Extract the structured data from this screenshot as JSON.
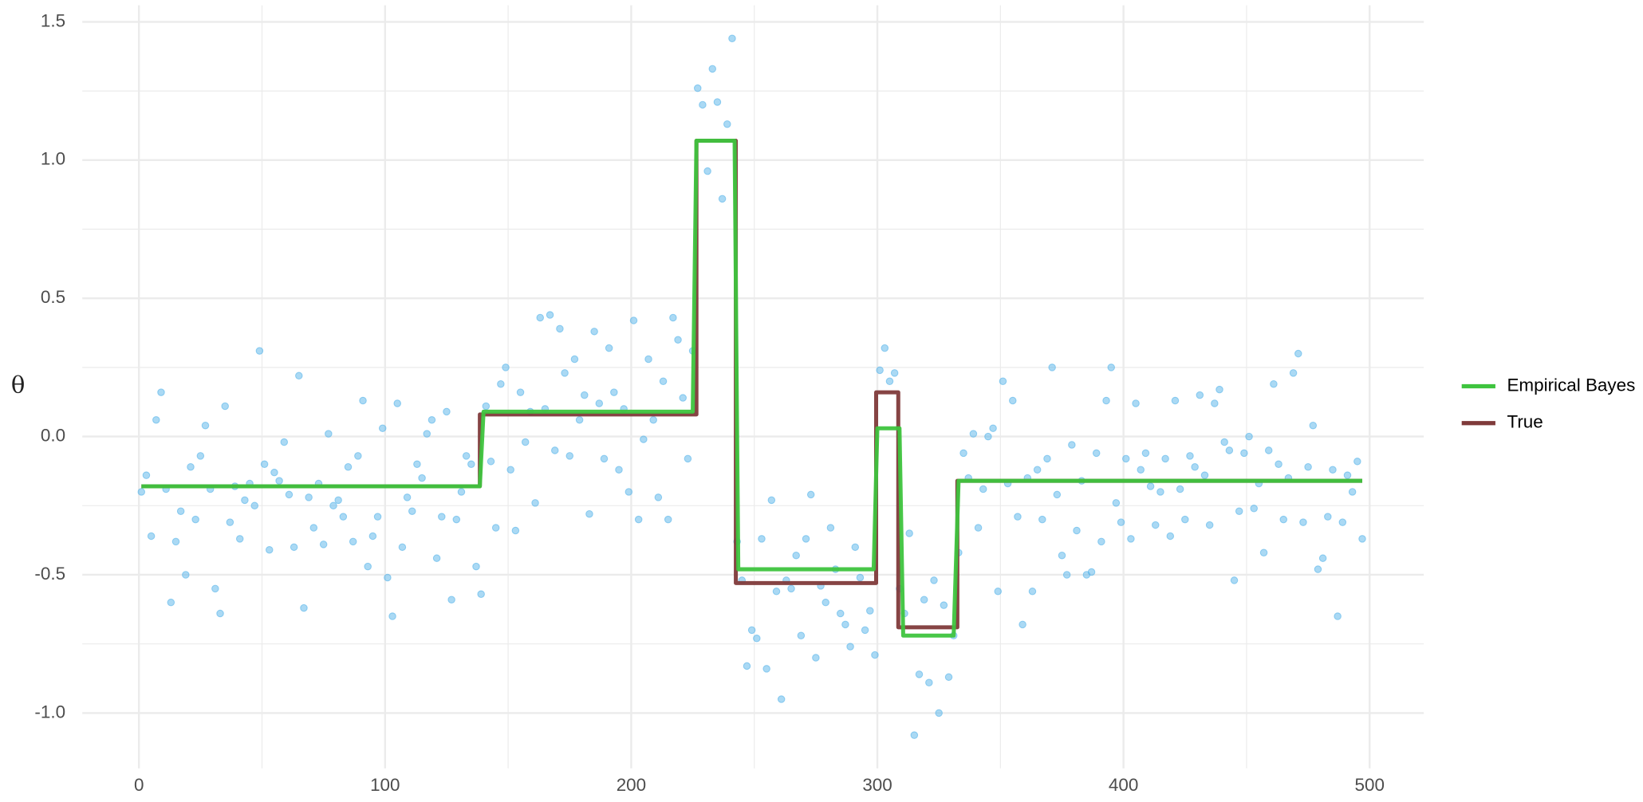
{
  "chart_data": {
    "type": "line",
    "ylabel": "θ",
    "xlim": [
      -23,
      522
    ],
    "ylim": [
      -1.2,
      1.56
    ],
    "xticks": [
      0,
      100,
      200,
      300,
      400,
      500
    ],
    "x_minor_ticks": [
      50,
      150,
      250,
      350,
      450
    ],
    "yticks": [
      {
        "value": -1,
        "label": "-1.0"
      },
      -0.5,
      {
        "value": 0,
        "label": "0.0"
      },
      0.5,
      {
        "value": 1,
        "label": "1.0"
      },
      1.5
    ],
    "y_minor_ticks": [
      -0.75,
      -0.25,
      0.25,
      0.75,
      1.25
    ],
    "grid": true,
    "legend": "right",
    "points": {
      "color": "#56B4E9",
      "x": [
        1,
        3,
        5,
        7,
        9,
        11,
        13,
        15,
        17,
        19,
        21,
        23,
        25,
        27,
        29,
        31,
        33,
        35,
        37,
        39,
        41,
        43,
        45,
        47,
        49,
        51,
        53,
        55,
        57,
        59,
        61,
        63,
        65,
        67,
        69,
        71,
        73,
        75,
        77,
        79,
        81,
        83,
        85,
        87,
        89,
        91,
        93,
        95,
        97,
        99,
        101,
        103,
        105,
        107,
        109,
        111,
        113,
        115,
        117,
        119,
        121,
        123,
        125,
        127,
        129,
        131,
        133,
        135,
        137,
        139,
        141,
        143,
        145,
        147,
        149,
        151,
        153,
        155,
        157,
        159,
        161,
        163,
        165,
        167,
        169,
        171,
        173,
        175,
        177,
        179,
        181,
        183,
        185,
        187,
        189,
        191,
        193,
        195,
        197,
        199,
        201,
        203,
        205,
        207,
        209,
        211,
        213,
        215,
        217,
        219,
        221,
        223,
        225,
        227,
        229,
        231,
        233,
        235,
        237,
        239,
        241,
        243,
        245,
        247,
        249,
        251,
        253,
        255,
        257,
        259,
        261,
        263,
        265,
        267,
        269,
        271,
        273,
        275,
        277,
        279,
        281,
        283,
        285,
        287,
        289,
        291,
        293,
        295,
        297,
        299,
        301,
        303,
        305,
        307,
        309,
        311,
        313,
        315,
        317,
        319,
        321,
        323,
        325,
        327,
        329,
        331,
        333,
        335,
        337,
        339,
        341,
        343,
        345,
        347,
        349,
        351,
        353,
        355,
        357,
        359,
        361,
        363,
        365,
        367,
        369,
        371,
        373,
        375,
        377,
        379,
        381,
        383,
        385,
        387,
        389,
        391,
        393,
        395,
        397,
        399,
        401,
        403,
        405,
        407,
        409,
        411,
        413,
        415,
        417,
        419,
        421,
        423,
        425,
        427,
        429,
        431,
        433,
        435,
        437,
        439,
        441,
        443,
        445,
        447,
        449,
        451,
        453,
        455,
        457,
        459,
        461,
        463,
        465,
        467,
        469,
        471,
        473,
        475,
        477,
        479,
        481,
        483,
        485,
        487,
        489,
        491,
        493,
        495,
        497
      ],
      "values": [
        -0.2,
        -0.14,
        -0.36,
        0.06,
        0.16,
        -0.19,
        -0.6,
        -0.38,
        -0.27,
        -0.5,
        -0.11,
        -0.3,
        -0.07,
        0.04,
        -0.19,
        -0.55,
        -0.64,
        0.11,
        -0.31,
        -0.18,
        -0.37,
        -0.23,
        -0.17,
        -0.25,
        0.31,
        -0.1,
        -0.41,
        -0.13,
        -0.16,
        -0.02,
        -0.21,
        -0.4,
        0.22,
        -0.62,
        -0.22,
        -0.33,
        -0.17,
        -0.39,
        0.01,
        -0.25,
        -0.23,
        -0.29,
        -0.11,
        -0.38,
        -0.07,
        0.13,
        -0.47,
        -0.36,
        -0.29,
        0.03,
        -0.51,
        -0.65,
        0.12,
        -0.4,
        -0.22,
        -0.27,
        -0.1,
        -0.15,
        0.01,
        0.06,
        -0.44,
        -0.29,
        0.09,
        -0.59,
        -0.3,
        -0.2,
        -0.07,
        -0.1,
        -0.47,
        -0.57,
        0.11,
        -0.09,
        -0.33,
        0.19,
        0.25,
        -0.12,
        -0.34,
        0.16,
        -0.02,
        0.09,
        -0.24,
        0.43,
        0.1,
        0.44,
        -0.05,
        0.39,
        0.23,
        -0.07,
        0.28,
        0.06,
        0.15,
        -0.28,
        0.38,
        0.12,
        -0.08,
        0.32,
        0.16,
        -0.12,
        0.1,
        -0.2,
        0.42,
        -0.3,
        -0.01,
        0.28,
        0.06,
        -0.22,
        0.2,
        -0.3,
        0.43,
        0.35,
        0.14,
        -0.08,
        0.31,
        1.26,
        1.2,
        0.96,
        1.33,
        1.21,
        0.86,
        1.13,
        1.44,
        -0.38,
        -0.52,
        -0.83,
        -0.7,
        -0.73,
        -0.37,
        -0.84,
        -0.23,
        -0.56,
        -0.95,
        -0.52,
        -0.55,
        -0.43,
        -0.72,
        -0.37,
        -0.21,
        -0.8,
        -0.54,
        -0.6,
        -0.33,
        -0.48,
        -0.64,
        -0.68,
        -0.76,
        -0.4,
        -0.51,
        -0.7,
        -0.63,
        -0.79,
        0.24,
        0.32,
        0.2,
        0.23,
        -0.55,
        -0.64,
        -0.35,
        -1.08,
        -0.86,
        -0.59,
        -0.89,
        -0.52,
        -1.0,
        -0.61,
        -0.87,
        -0.72,
        -0.42,
        -0.06,
        -0.15,
        0.01,
        -0.33,
        -0.19,
        0.0,
        0.03,
        -0.56,
        0.2,
        -0.17,
        0.13,
        -0.29,
        -0.68,
        -0.15,
        -0.56,
        -0.12,
        -0.3,
        -0.08,
        0.25,
        -0.21,
        -0.43,
        -0.5,
        -0.03,
        -0.34,
        -0.16,
        -0.5,
        -0.49,
        -0.06,
        -0.38,
        0.13,
        0.25,
        -0.24,
        -0.31,
        -0.08,
        -0.37,
        0.12,
        -0.12,
        -0.06,
        -0.18,
        -0.32,
        -0.2,
        -0.08,
        -0.36,
        0.13,
        -0.19,
        -0.3,
        -0.07,
        -0.11,
        0.15,
        -0.14,
        -0.32,
        0.12,
        0.17,
        -0.02,
        -0.05,
        -0.52,
        -0.27,
        -0.06,
        0.0,
        -0.26,
        -0.17,
        -0.42,
        -0.05,
        0.19,
        -0.1,
        -0.3,
        -0.15,
        0.23,
        0.3,
        -0.31,
        -0.11,
        0.04,
        -0.48,
        -0.44,
        -0.29,
        -0.12,
        -0.65,
        -0.31,
        -0.14,
        -0.2,
        -0.09,
        -0.37
      ]
    },
    "series": [
      {
        "name": "True",
        "color": "#7f3a3a",
        "x": [
          1,
          138.5,
          138.5,
          226.5,
          226.5,
          242.5,
          242.5,
          299.5,
          299.5,
          308.5,
          308.5,
          332.5,
          332.5,
          497
        ],
        "values": [
          -0.18,
          -0.18,
          0.08,
          0.08,
          1.07,
          1.07,
          -0.53,
          -0.53,
          0.16,
          0.16,
          -0.69,
          -0.69,
          -0.16,
          -0.16
        ]
      },
      {
        "name": "Empirical Bayes",
        "color": "#3ec43e",
        "x": [
          1,
          138.5,
          140,
          225,
          226.5,
          242,
          243.5,
          298.5,
          300,
          309,
          310.5,
          331,
          333,
          497
        ],
        "values": [
          -0.18,
          -0.18,
          0.09,
          0.09,
          1.07,
          1.07,
          -0.48,
          -0.48,
          0.03,
          0.03,
          -0.72,
          -0.72,
          -0.16,
          -0.16
        ]
      }
    ]
  }
}
